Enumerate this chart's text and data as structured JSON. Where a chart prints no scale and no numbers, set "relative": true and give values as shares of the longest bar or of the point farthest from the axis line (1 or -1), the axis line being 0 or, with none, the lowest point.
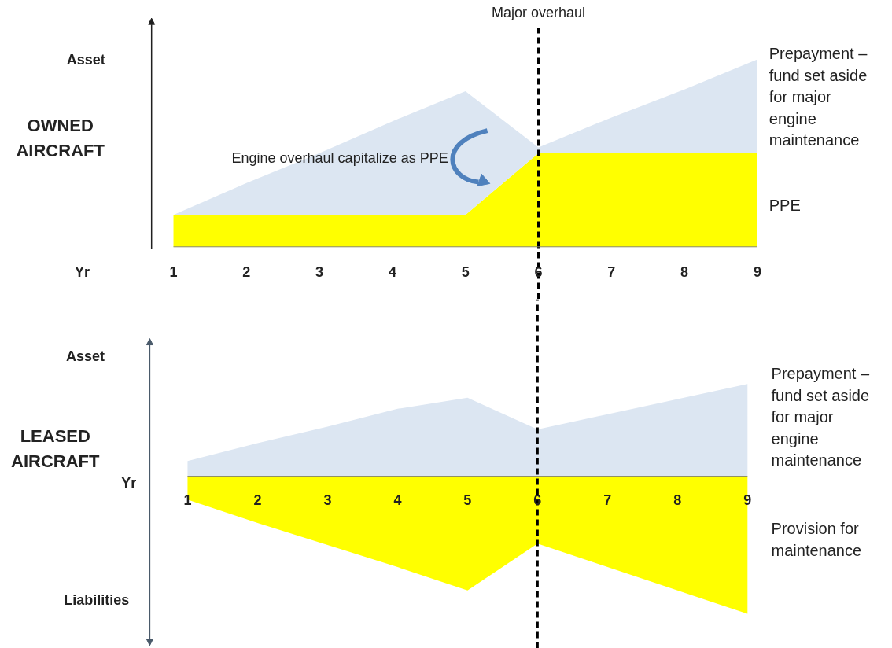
{
  "chart_data": [
    {
      "type": "area",
      "ylabel": "OWNED AIRCRAFT",
      "xlabel": "Yr",
      "categories": [
        "1",
        "2",
        "3",
        "4",
        "5",
        "6",
        "7",
        "8",
        "9"
      ],
      "relative": true,
      "stacked": true,
      "grid": false,
      "legend": false,
      "series": [
        {
          "name": "PPE",
          "color": "#ffff00",
          "values": [
            0.17,
            0.17,
            0.17,
            0.17,
            0.17,
            0.5,
            0.5,
            0.5,
            0.5
          ]
        },
        {
          "name": "Prepayment – fund set aside for major engine maintenance",
          "color": "#dce6f2",
          "values": [
            0,
            0.17,
            0.33,
            0.5,
            0.66,
            0.03,
            0.19,
            0.34,
            0.5
          ]
        }
      ],
      "ref_lines": [
        {
          "axis": "x",
          "value": "6",
          "label": "Major overhaul",
          "line_style": "dashed",
          "color": "#000000"
        }
      ],
      "annotations": [
        "Asset",
        "Engine overhaul capitalize as PPE"
      ]
    },
    {
      "type": "area",
      "ylabel": "LEASED AIRCRAFT",
      "xlabel": "Yr",
      "categories": [
        "1",
        "2",
        "3",
        "4",
        "5",
        "6",
        "7",
        "8",
        "9"
      ],
      "relative": true,
      "grid": false,
      "legend": false,
      "series": [
        {
          "name": "Prepayment – fund set aside for major engine maintenance",
          "color": "#dce6f2",
          "values": [
            0.11,
            0.24,
            0.36,
            0.49,
            0.57,
            0.34,
            0.45,
            0.56,
            0.67
          ]
        },
        {
          "name": "Provision for maintenance",
          "color": "#ffff00",
          "values": [
            -0.17,
            -0.34,
            -0.5,
            -0.66,
            -0.83,
            -0.49,
            -0.66,
            -0.83,
            -1.0
          ]
        }
      ],
      "ref_lines": [
        {
          "axis": "x",
          "value": "6",
          "line_style": "dashed",
          "color": "#000000"
        }
      ],
      "annotations": [
        "Asset",
        "Liabilities"
      ]
    }
  ]
}
